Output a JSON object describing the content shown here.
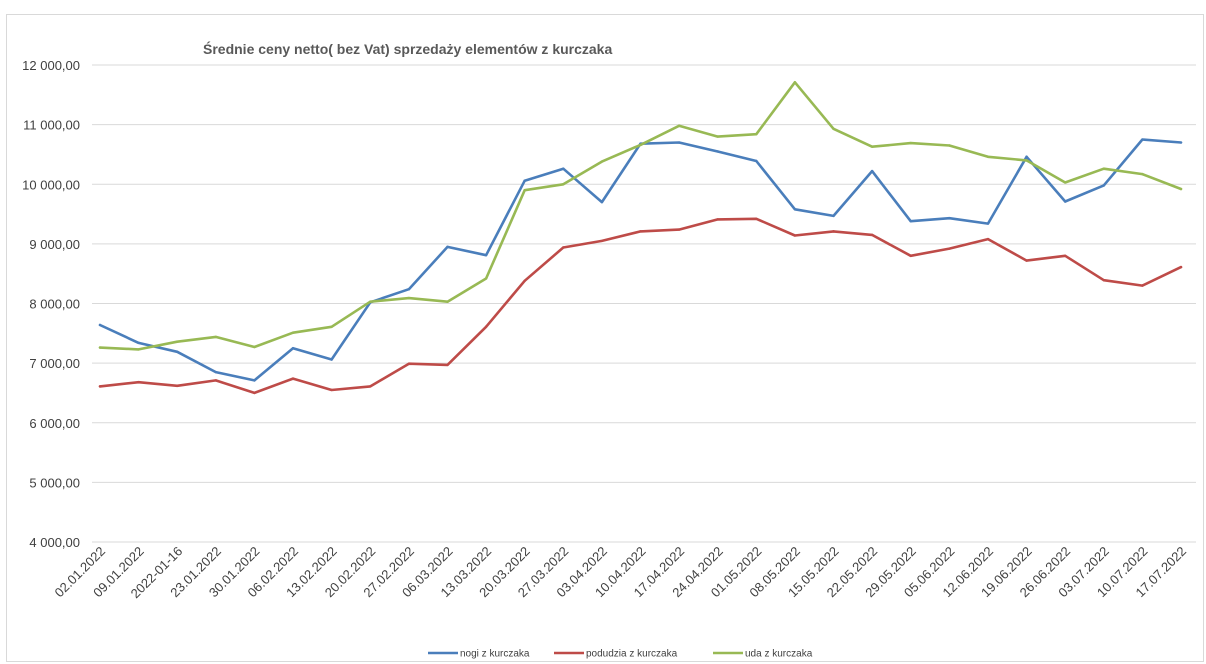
{
  "chart_data": {
    "type": "line",
    "title": "Średnie ceny netto( bez Vat) sprzedaży elementów z kurczaka",
    "xlabel": "",
    "ylabel": "",
    "ylim": [
      4000,
      12000
    ],
    "y_ticks": [
      4000,
      5000,
      6000,
      7000,
      8000,
      9000,
      10000,
      11000,
      12000
    ],
    "y_tick_labels": [
      "4 000,00",
      "5 000,00",
      "6 000,00",
      "7 000,00",
      "8 000,00",
      "9 000,00",
      "10 000,00",
      "11 000,00",
      "12 000,00"
    ],
    "grid": true,
    "legend_position": "bottom",
    "categories": [
      "02.01.2022",
      "09.01.2022",
      "2022-01-16",
      "23.01.2022",
      "30.01.2022",
      "06.02.2022",
      "13.02.2022",
      "20.02.2022",
      "27.02.2022",
      "06.03.2022",
      "13.03.2022",
      "20.03.2022",
      "27.03.2022",
      "03.04.2022",
      "10.04.2022",
      "17.04.2022",
      "24.04.2022",
      "01.05.2022",
      "08.05.2022",
      "15.05.2022",
      "22.05.2022",
      "29.05.2022",
      "05.06.2022",
      "12.06.2022",
      "19.06.2022",
      "26.06.2022",
      "03.07.2022",
      "10.07.2022",
      "17.07.2022"
    ],
    "series": [
      {
        "name": "nogi z kurczaka",
        "color": "#4a7ebb",
        "values": [
          7640,
          7340,
          7190,
          6850,
          6710,
          7250,
          7060,
          8020,
          8240,
          8950,
          8810,
          10060,
          10260,
          9700,
          10680,
          10700,
          10550,
          10390,
          9580,
          9470,
          10220,
          9380,
          9430,
          9340,
          10460,
          9710,
          9980,
          10750,
          10700
        ]
      },
      {
        "name": "podudzia z kurczaka",
        "color": "#be4b48",
        "values": [
          6610,
          6680,
          6620,
          6710,
          6500,
          6740,
          6550,
          6610,
          6990,
          6970,
          7610,
          8380,
          8940,
          9050,
          9210,
          9240,
          9410,
          9420,
          9140,
          9210,
          9150,
          8800,
          8920,
          9080,
          8720,
          8800,
          8390,
          8300,
          8610
        ]
      },
      {
        "name": "uda z kurczaka",
        "color": "#98b954",
        "values": [
          7260,
          7230,
          7360,
          7440,
          7270,
          7510,
          7610,
          8030,
          8090,
          8030,
          8420,
          9900,
          10000,
          10380,
          10660,
          10980,
          10800,
          10840,
          11710,
          10930,
          10630,
          10690,
          10650,
          10460,
          10400,
          10030,
          10260,
          10170,
          9920
        ]
      }
    ]
  }
}
